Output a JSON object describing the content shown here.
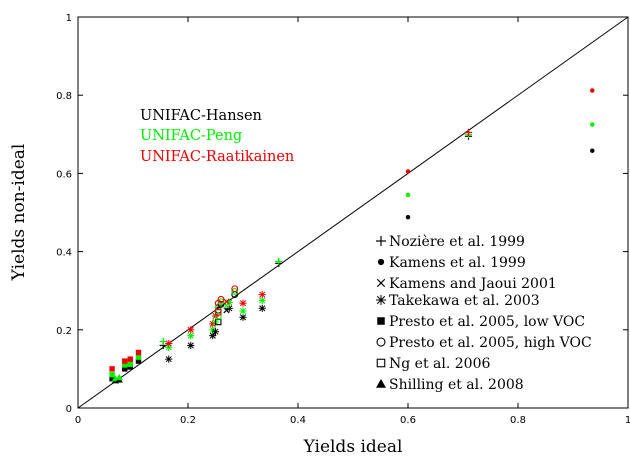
{
  "chart_data": {
    "type": "scatter",
    "title": "",
    "xlabel": "Yields ideal",
    "ylabel": "Yields non-ideal",
    "xlim": [
      0,
      1
    ],
    "ylim": [
      0,
      1
    ],
    "xticks": [
      "0",
      "0.2",
      "0.4",
      "0.6",
      "0.8",
      "1"
    ],
    "yticks": [
      "0",
      "0.2",
      "0.4",
      "0.6",
      "0.8",
      "1"
    ],
    "reference_line": {
      "x": [
        0,
        1
      ],
      "y": [
        0,
        1
      ]
    },
    "grid": false,
    "models": [
      {
        "name": "UNIFAC-Hansen",
        "color": "#000000"
      },
      {
        "name": "UNIFAC-Peng",
        "color": "#00ee00"
      },
      {
        "name": "UNIFAC-Raatikainen",
        "color": "#ee0000"
      }
    ],
    "datasets": [
      {
        "name": "Nozière et al. 1999",
        "marker": "plus"
      },
      {
        "name": "Kamens et al. 1999",
        "marker": "dot"
      },
      {
        "name": "Kamens and Jaoui 2001",
        "marker": "cross"
      },
      {
        "name": "Takekawa et al. 2003",
        "marker": "star"
      },
      {
        "name": "Presto et al. 2005, low VOC",
        "marker": "square"
      },
      {
        "name": "Presto et al. 2005, high VOC",
        "marker": "circle"
      },
      {
        "name": "Ng et al. 2006",
        "marker": "open-square"
      },
      {
        "name": "Shilling et al. 2008",
        "marker": "triangle"
      }
    ],
    "points": [
      {
        "dataset": "Kamens et al. 1999",
        "model": "UNIFAC-Hansen",
        "x": 0.6,
        "y": 0.488
      },
      {
        "dataset": "Kamens et al. 1999",
        "model": "UNIFAC-Peng",
        "x": 0.6,
        "y": 0.545
      },
      {
        "dataset": "Kamens et al. 1999",
        "model": "UNIFAC-Raatikainen",
        "x": 0.6,
        "y": 0.605
      },
      {
        "dataset": "Kamens et al. 1999",
        "model": "UNIFAC-Hansen",
        "x": 0.935,
        "y": 0.658
      },
      {
        "dataset": "Kamens et al. 1999",
        "model": "UNIFAC-Peng",
        "x": 0.935,
        "y": 0.725
      },
      {
        "dataset": "Kamens et al. 1999",
        "model": "UNIFAC-Raatikainen",
        "x": 0.935,
        "y": 0.812
      },
      {
        "dataset": "Nozière et al. 1999",
        "model": "UNIFAC-Hansen",
        "x": 0.71,
        "y": 0.695
      },
      {
        "dataset": "Nozière et al. 1999",
        "model": "UNIFAC-Peng",
        "x": 0.71,
        "y": 0.7
      },
      {
        "dataset": "Nozière et al. 1999",
        "model": "UNIFAC-Raatikainen",
        "x": 0.71,
        "y": 0.705
      },
      {
        "dataset": "Nozière et al. 1999",
        "model": "UNIFAC-Hansen",
        "x": 0.365,
        "y": 0.37
      },
      {
        "dataset": "Nozière et al. 1999",
        "model": "UNIFAC-Peng",
        "x": 0.365,
        "y": 0.375
      },
      {
        "dataset": "Nozière et al. 1999",
        "model": "UNIFAC-Hansen",
        "x": 0.155,
        "y": 0.16
      },
      {
        "dataset": "Nozière et al. 1999",
        "model": "UNIFAC-Peng",
        "x": 0.155,
        "y": 0.17
      },
      {
        "dataset": "Takekawa et al. 2003",
        "model": "UNIFAC-Hansen",
        "x": 0.335,
        "y": 0.255
      },
      {
        "dataset": "Takekawa et al. 2003",
        "model": "UNIFAC-Peng",
        "x": 0.335,
        "y": 0.275
      },
      {
        "dataset": "Takekawa et al. 2003",
        "model": "UNIFAC-Raatikainen",
        "x": 0.335,
        "y": 0.29
      },
      {
        "dataset": "Takekawa et al. 2003",
        "model": "UNIFAC-Hansen",
        "x": 0.3,
        "y": 0.232
      },
      {
        "dataset": "Takekawa et al. 2003",
        "model": "UNIFAC-Peng",
        "x": 0.3,
        "y": 0.248
      },
      {
        "dataset": "Takekawa et al. 2003",
        "model": "UNIFAC-Raatikainen",
        "x": 0.3,
        "y": 0.268
      },
      {
        "dataset": "Takekawa et al. 2003",
        "model": "UNIFAC-Hansen",
        "x": 0.245,
        "y": 0.185
      },
      {
        "dataset": "Takekawa et al. 2003",
        "model": "UNIFAC-Peng",
        "x": 0.245,
        "y": 0.2
      },
      {
        "dataset": "Takekawa et al. 2003",
        "model": "UNIFAC-Raatikainen",
        "x": 0.245,
        "y": 0.215
      },
      {
        "dataset": "Takekawa et al. 2003",
        "model": "UNIFAC-Hansen",
        "x": 0.205,
        "y": 0.16
      },
      {
        "dataset": "Takekawa et al. 2003",
        "model": "UNIFAC-Peng",
        "x": 0.205,
        "y": 0.185
      },
      {
        "dataset": "Takekawa et al. 2003",
        "model": "UNIFAC-Raatikainen",
        "x": 0.205,
        "y": 0.2
      },
      {
        "dataset": "Takekawa et al. 2003",
        "model": "UNIFAC-Hansen",
        "x": 0.165,
        "y": 0.125
      },
      {
        "dataset": "Takekawa et al. 2003",
        "model": "UNIFAC-Peng",
        "x": 0.165,
        "y": 0.155
      },
      {
        "dataset": "Takekawa et al. 2003",
        "model": "UNIFAC-Raatikainen",
        "x": 0.165,
        "y": 0.165
      },
      {
        "dataset": "Takekawa et al. 2003",
        "model": "UNIFAC-Hansen",
        "x": 0.275,
        "y": 0.255
      },
      {
        "dataset": "Takekawa et al. 2003",
        "model": "UNIFAC-Peng",
        "x": 0.275,
        "y": 0.27
      },
      {
        "dataset": "Takekawa et al. 2003",
        "model": "UNIFAC-Hansen",
        "x": 0.25,
        "y": 0.195
      },
      {
        "dataset": "Takekawa et al. 2003",
        "model": "UNIFAC-Peng",
        "x": 0.25,
        "y": 0.22
      },
      {
        "dataset": "Takekawa et al. 2003",
        "model": "UNIFAC-Raatikainen",
        "x": 0.25,
        "y": 0.235
      },
      {
        "dataset": "Kamens and Jaoui 2001",
        "model": "UNIFAC-Hansen",
        "x": 0.27,
        "y": 0.25
      },
      {
        "dataset": "Kamens and Jaoui 2001",
        "model": "UNIFAC-Peng",
        "x": 0.27,
        "y": 0.262
      },
      {
        "dataset": "Kamens and Jaoui 2001",
        "model": "UNIFAC-Raatikainen",
        "x": 0.27,
        "y": 0.272
      },
      {
        "dataset": "Presto et al. 2005, low VOC",
        "model": "UNIFAC-Hansen",
        "x": 0.062,
        "y": 0.075
      },
      {
        "dataset": "Presto et al. 2005, low VOC",
        "model": "UNIFAC-Peng",
        "x": 0.062,
        "y": 0.085
      },
      {
        "dataset": "Presto et al. 2005, low VOC",
        "model": "UNIFAC-Raatikainen",
        "x": 0.062,
        "y": 0.1
      },
      {
        "dataset": "Presto et al. 2005, low VOC",
        "model": "UNIFAC-Hansen",
        "x": 0.085,
        "y": 0.1
      },
      {
        "dataset": "Presto et al. 2005, low VOC",
        "model": "UNIFAC-Peng",
        "x": 0.085,
        "y": 0.11
      },
      {
        "dataset": "Presto et al. 2005, low VOC",
        "model": "UNIFAC-Raatikainen",
        "x": 0.085,
        "y": 0.12
      },
      {
        "dataset": "Presto et al. 2005, low VOC",
        "model": "UNIFAC-Hansen",
        "x": 0.095,
        "y": 0.105
      },
      {
        "dataset": "Presto et al. 2005, low VOC",
        "model": "UNIFAC-Peng",
        "x": 0.095,
        "y": 0.112
      },
      {
        "dataset": "Presto et al. 2005, low VOC",
        "model": "UNIFAC-Raatikainen",
        "x": 0.095,
        "y": 0.125
      },
      {
        "dataset": "Presto et al. 2005, low VOC",
        "model": "UNIFAC-Hansen",
        "x": 0.11,
        "y": 0.12
      },
      {
        "dataset": "Presto et al. 2005, low VOC",
        "model": "UNIFAC-Peng",
        "x": 0.11,
        "y": 0.13
      },
      {
        "dataset": "Presto et al. 2005, low VOC",
        "model": "UNIFAC-Raatikainen",
        "x": 0.11,
        "y": 0.142
      },
      {
        "dataset": "Presto et al. 2005, high VOC",
        "model": "UNIFAC-Hansen",
        "x": 0.255,
        "y": 0.25
      },
      {
        "dataset": "Presto et al. 2005, high VOC",
        "model": "UNIFAC-Peng",
        "x": 0.255,
        "y": 0.258
      },
      {
        "dataset": "Presto et al. 2005, high VOC",
        "model": "UNIFAC-Raatikainen",
        "x": 0.255,
        "y": 0.268
      },
      {
        "dataset": "Presto et al. 2005, high VOC",
        "model": "UNIFAC-Hansen",
        "x": 0.26,
        "y": 0.265
      },
      {
        "dataset": "Presto et al. 2005, high VOC",
        "model": "UNIFAC-Peng",
        "x": 0.26,
        "y": 0.272
      },
      {
        "dataset": "Presto et al. 2005, high VOC",
        "model": "UNIFAC-Raatikainen",
        "x": 0.26,
        "y": 0.278
      },
      {
        "dataset": "Presto et al. 2005, high VOC",
        "model": "UNIFAC-Hansen",
        "x": 0.285,
        "y": 0.29
      },
      {
        "dataset": "Presto et al. 2005, high VOC",
        "model": "UNIFAC-Peng",
        "x": 0.285,
        "y": 0.298
      },
      {
        "dataset": "Presto et al. 2005, high VOC",
        "model": "UNIFAC-Raatikainen",
        "x": 0.285,
        "y": 0.305
      },
      {
        "dataset": "Ng et al. 2006",
        "model": "UNIFAC-Hansen",
        "x": 0.255,
        "y": 0.22
      },
      {
        "dataset": "Ng et al. 2006",
        "model": "UNIFAC-Peng",
        "x": 0.255,
        "y": 0.235
      },
      {
        "dataset": "Ng et al. 2006",
        "model": "UNIFAC-Raatikainen",
        "x": 0.255,
        "y": 0.245
      },
      {
        "dataset": "Shilling et al. 2008",
        "model": "UNIFAC-Hansen",
        "x": 0.068,
        "y": 0.07
      },
      {
        "dataset": "Shilling et al. 2008",
        "model": "UNIFAC-Peng",
        "x": 0.068,
        "y": 0.075
      },
      {
        "dataset": "Shilling et al. 2008",
        "model": "UNIFAC-Hansen",
        "x": 0.075,
        "y": 0.072
      },
      {
        "dataset": "Shilling et al. 2008",
        "model": "UNIFAC-Peng",
        "x": 0.075,
        "y": 0.078
      }
    ]
  }
}
